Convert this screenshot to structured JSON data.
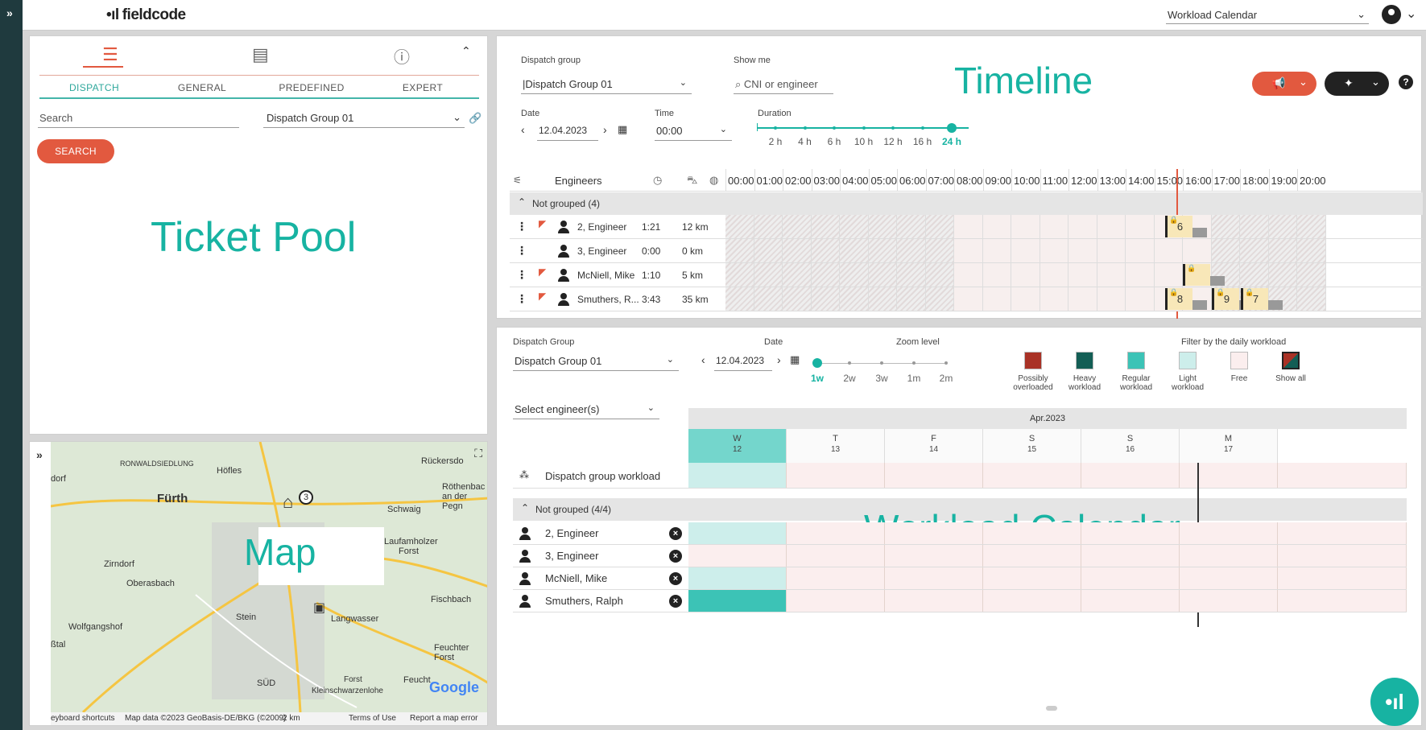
{
  "header": {
    "logo": "fieldcode",
    "view_select": "Workload Calendar"
  },
  "ticket_pool": {
    "tabs": [
      "DISPATCH",
      "GENERAL",
      "PREDEFINED",
      "EXPERT"
    ],
    "search_placeholder": "Search",
    "group_select": "Dispatch Group 01",
    "search_button": "SEARCH",
    "overlay": "Ticket Pool"
  },
  "map": {
    "overlay": "Map",
    "labels": [
      "RONWALDSIEDLUNG",
      "Höfles",
      "Rückersdo",
      "dorf",
      "Fürth",
      "Röthenbac",
      "an der Pegn",
      "Schwaig",
      "Laufamholzer",
      "Forst",
      "Zirndorf",
      "Oberasbach",
      "Fischbach",
      "Langwasser",
      "Stein",
      "Wolfgangshof",
      "ßtal",
      "Feuchter Forst",
      "SÜD",
      "Forst",
      "Kleinschwarzenlohe",
      "Feucht"
    ],
    "footer": {
      "shortcuts": "eyboard shortcuts",
      "attribution": "Map data ©2023 GeoBasis-DE/BKG (©2009)",
      "scale": "2 km",
      "terms": "Terms of Use",
      "report": "Report a map error"
    },
    "google": "Google"
  },
  "timeline": {
    "overlay": "Timeline",
    "dispatch_group_label": "Dispatch group",
    "dispatch_group_value": "|Dispatch Group 01",
    "show_me_label": "Show me",
    "show_me_placeholder": "CNI or engineer",
    "date_label": "Date",
    "date_value": "12.04.2023",
    "time_label": "Time",
    "time_value": "00:00",
    "duration_label": "Duration",
    "durations": [
      "2 h",
      "4 h",
      "6 h",
      "10 h",
      "12 h",
      "16 h",
      "24 h"
    ],
    "duration_selected_index": 6,
    "engineers_header": "Engineers",
    "hours": [
      "00:00",
      "01:00",
      "02:00",
      "03:00",
      "04:00",
      "05:00",
      "06:00",
      "07:00",
      "08:00",
      "09:00",
      "10:00",
      "11:00",
      "12:00",
      "13:00",
      "14:00",
      "15:00",
      "16:00",
      "17:00",
      "18:00",
      "19:00",
      "20:00"
    ],
    "group_label": "Not grouped (4)",
    "engineers": [
      {
        "name": "2, Engineer",
        "time": "1:21",
        "km": "12 km",
        "flag": true,
        "tickets": [
          "6"
        ]
      },
      {
        "name": "3, Engineer",
        "time": "0:00",
        "km": "0 km",
        "flag": false,
        "tickets": []
      },
      {
        "name": "McNiell, Mike",
        "time": "1:10",
        "km": "5 km",
        "flag": true,
        "tickets": [
          ""
        ]
      },
      {
        "name": "Smuthers, R...",
        "time": "3:43",
        "km": "35 km",
        "flag": true,
        "tickets": [
          "8",
          "9",
          "7"
        ]
      }
    ],
    "colors": {
      "accent": "#17b3a2",
      "red": "#e2593f",
      "dark": "#222222",
      "now_line": "#e2593f"
    }
  },
  "workload": {
    "overlay": "Workload Calendar",
    "dispatch_group_label": "Dispatch Group",
    "dispatch_group_value": "Dispatch Group 01",
    "date_label": "Date",
    "date_value": "12.04.2023",
    "zoom_label": "Zoom level",
    "zoom_levels": [
      "1w",
      "2w",
      "3w",
      "1m",
      "2m"
    ],
    "zoom_selected_index": 0,
    "filter_label": "Filter by the daily workload",
    "legend": [
      {
        "label": "Possibly overloaded",
        "color": "#a93226"
      },
      {
        "label": "Heavy workload",
        "color": "#135e55"
      },
      {
        "label": "Regular workload",
        "color": "#3cc3b6"
      },
      {
        "label": "Light workload",
        "color": "#cdeeeb"
      },
      {
        "label": "Free",
        "color": "#fbeeee"
      },
      {
        "label": "Show all",
        "color": "#222222"
      }
    ],
    "select_engineers": "Select engineer(s)",
    "month": "Apr.2023",
    "days": [
      {
        "dow": "W",
        "num": "12"
      },
      {
        "dow": "T",
        "num": "13"
      },
      {
        "dow": "F",
        "num": "14"
      },
      {
        "dow": "S",
        "num": "15"
      },
      {
        "dow": "S",
        "num": "16"
      },
      {
        "dow": "M",
        "num": "17"
      }
    ],
    "group_workload": "Dispatch group workload",
    "group_label": "Not grouped (4/4)",
    "engineers": [
      {
        "name": "2, Engineer",
        "first_day": "light"
      },
      {
        "name": "3, Engineer",
        "first_day": "free"
      },
      {
        "name": "McNiell, Mike",
        "first_day": "light"
      },
      {
        "name": "Smuthers, Ralph",
        "first_day": "regular"
      }
    ]
  }
}
